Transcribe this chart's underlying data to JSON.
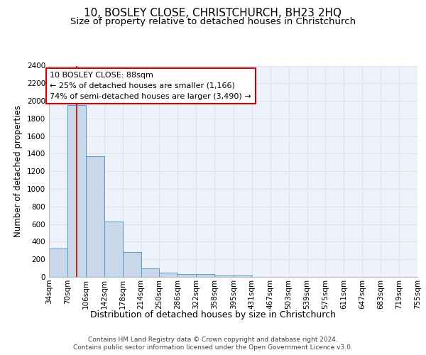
{
  "title": "10, BOSLEY CLOSE, CHRISTCHURCH, BH23 2HQ",
  "subtitle": "Size of property relative to detached houses in Christchurch",
  "xlabel": "Distribution of detached houses by size in Christchurch",
  "ylabel": "Number of detached properties",
  "bin_edges": [
    34,
    70,
    106,
    142,
    178,
    214,
    250,
    286,
    322,
    358,
    395,
    431,
    467,
    503,
    539,
    575,
    611,
    647,
    683,
    719,
    755
  ],
  "bar_heights": [
    320,
    1950,
    1370,
    630,
    280,
    100,
    50,
    35,
    30,
    20,
    20,
    0,
    0,
    0,
    0,
    0,
    0,
    0,
    0,
    0
  ],
  "bar_color": "#c8d8e8",
  "bar_edge_color": "#5599cc",
  "grid_color": "#dde4f0",
  "background_color": "#eef2fa",
  "red_line_x": 88,
  "red_line_color": "#cc0000",
  "annotation_text": "10 BOSLEY CLOSE: 88sqm\n← 25% of detached houses are smaller (1,166)\n74% of semi-detached houses are larger (3,490) →",
  "annotation_box_color": "#ffffff",
  "annotation_box_edge": "#cc0000",
  "ylim": [
    0,
    2400
  ],
  "yticks": [
    0,
    200,
    400,
    600,
    800,
    1000,
    1200,
    1400,
    1600,
    1800,
    2000,
    2200,
    2400
  ],
  "footer_line1": "Contains HM Land Registry data © Crown copyright and database right 2024.",
  "footer_line2": "Contains public sector information licensed under the Open Government Licence v3.0.",
  "title_fontsize": 11,
  "subtitle_fontsize": 9.5,
  "xlabel_fontsize": 9,
  "ylabel_fontsize": 8.5,
  "tick_fontsize": 7.5,
  "annotation_fontsize": 8,
  "footer_fontsize": 6.5
}
